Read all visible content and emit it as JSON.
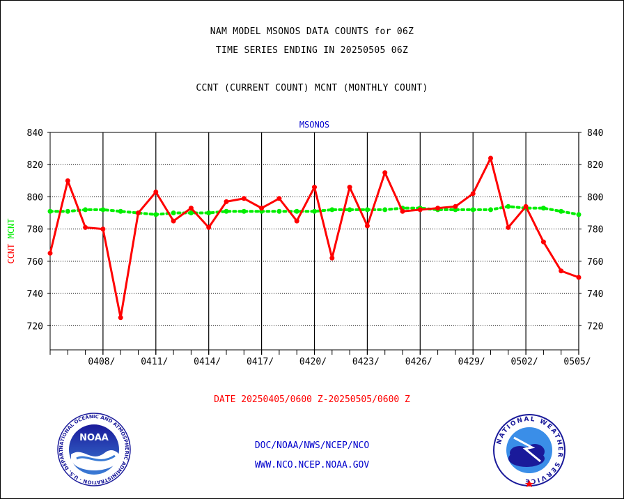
{
  "header": {
    "title1": "NAM MODEL MSONOS DATA COUNTS for 06Z",
    "title2": "TIME SERIES ENDING IN 20250505 06Z",
    "subtitle": "CCNT (CURRENT COUNT) MCNT (MONTHLY COUNT)"
  },
  "chart_data": {
    "type": "line",
    "title": "MSONOS",
    "ylabel_parts": [
      "CCNT",
      "MCNT"
    ],
    "xlabel": "",
    "ylim": [
      705,
      840
    ],
    "yticks": [
      720,
      740,
      760,
      780,
      800,
      820,
      840
    ],
    "x": [
      "0405",
      "0406",
      "0407",
      "0408",
      "0409",
      "0410",
      "0411",
      "0412",
      "0413",
      "0414",
      "0415",
      "0416",
      "0417",
      "0418",
      "0419",
      "0420",
      "0421",
      "0422",
      "0423",
      "0424",
      "0425",
      "0426",
      "0427",
      "0428",
      "0429",
      "0430",
      "0501",
      "0502",
      "0503",
      "0504",
      "0505"
    ],
    "xtick_labels": [
      {
        "x": "0408",
        "label": "0408/"
      },
      {
        "x": "0411",
        "label": "0411/"
      },
      {
        "x": "0414",
        "label": "0414/"
      },
      {
        "x": "0417",
        "label": "0417/"
      },
      {
        "x": "0420",
        "label": "0420/"
      },
      {
        "x": "0423",
        "label": "0423/"
      },
      {
        "x": "0426",
        "label": "0426/"
      },
      {
        "x": "0429",
        "label": "0429/"
      },
      {
        "x": "0502",
        "label": "0502/"
      },
      {
        "x": "0505",
        "label": "0505/"
      }
    ],
    "series": [
      {
        "name": "CCNT",
        "color": "#ff0000",
        "style": "solid",
        "values": [
          765,
          810,
          781,
          780,
          725,
          790,
          803,
          785,
          793,
          781,
          797,
          799,
          793,
          799,
          785,
          806,
          762,
          806,
          782,
          815,
          791,
          792,
          793,
          794,
          802,
          824,
          781,
          794,
          772,
          754,
          750
        ]
      },
      {
        "name": "MCNT",
        "color": "#00ee00",
        "style": "dotted",
        "values": [
          791,
          791,
          792,
          792,
          791,
          790,
          789,
          790,
          790,
          790,
          791,
          791,
          791,
          791,
          791,
          791,
          792,
          792,
          792,
          792,
          793,
          793,
          792,
          792,
          792,
          792,
          794,
          793,
          793,
          791,
          789
        ]
      }
    ],
    "grid": true,
    "date_range": "DATE 20250405/0600 Z-20250505/0600 Z"
  },
  "footer": {
    "line1": "DOC/NOAA/NWS/NCEP/NCO",
    "line2": "WWW.NCO.NCEP.NOAA.GOV",
    "noaa_logo_text": "NOAA",
    "noaa_ring_text": "NATIONAL OCEANIC AND ATMOSPHERIC ADMINISTRATION · U.S. DEPARTMENT OF COMMERCE ·",
    "nws_ring_text": "NATIONAL WEATHER SERVICE"
  },
  "colors": {
    "ccnt": "#ff0000",
    "mcnt": "#00ee00",
    "axis": "#000000",
    "blue_text": "#0000cc",
    "date_text": "#ff0000"
  }
}
